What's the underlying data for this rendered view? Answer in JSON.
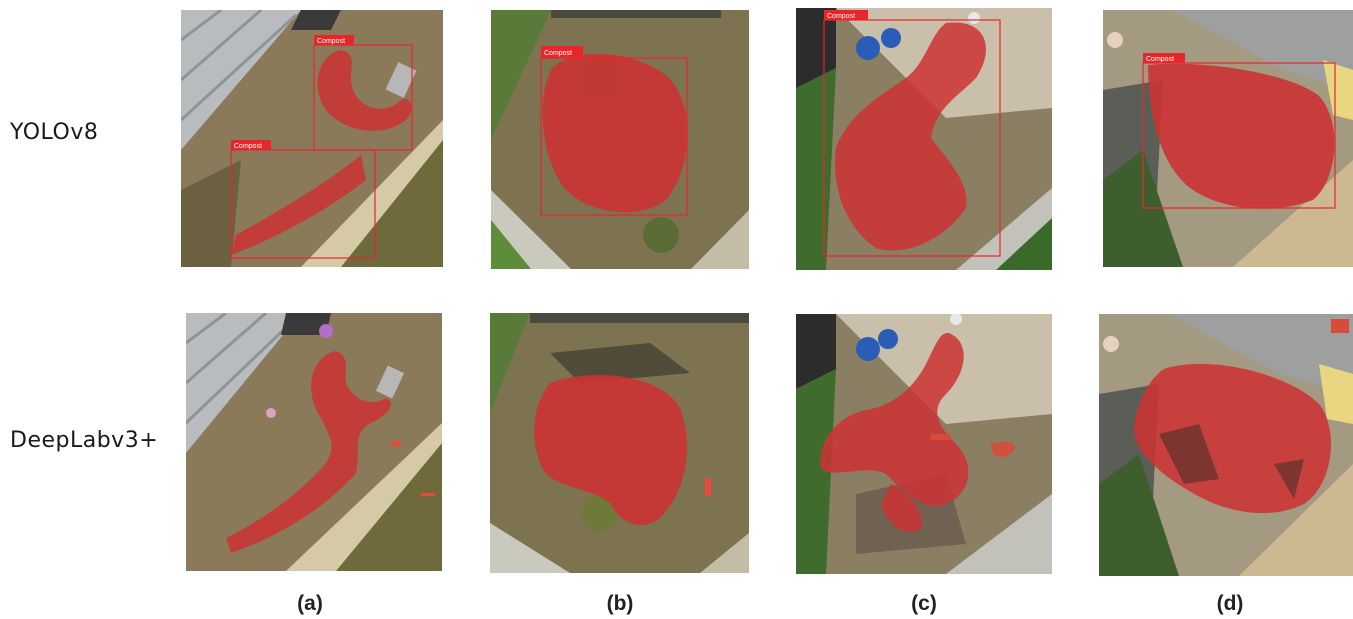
{
  "rows": {
    "top_label": "YOLOv8",
    "bottom_label": "DeepLabv3+"
  },
  "columns": [
    "(a)",
    "(b)",
    "(c)",
    "(d)"
  ],
  "detection_class_label": "Compost",
  "colors": {
    "mask": "#d42a2a",
    "box": "#e8262a",
    "tag_bg": "#e8262a"
  }
}
